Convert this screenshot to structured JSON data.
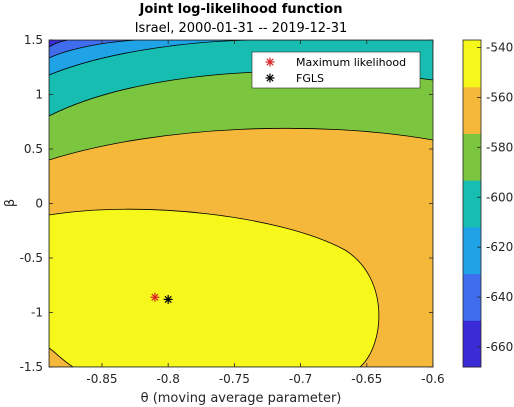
{
  "chart_data": {
    "type": "contour",
    "title": "Joint log-likelihood function",
    "subtitle": "Israel, 2000-01-31 -- 2019-12-31",
    "xlabel": "θ (moving average parameter)",
    "ylabel": "β",
    "xlim": [
      -0.89,
      -0.6
    ],
    "ylim": [
      -1.5,
      1.5
    ],
    "xticks": [
      -0.85,
      -0.8,
      -0.75,
      -0.7,
      -0.65,
      -0.6
    ],
    "xtick_labels": [
      "-0.85",
      "-0.8",
      "-0.75",
      "-0.7",
      "-0.65",
      "-0.6"
    ],
    "yticks": [
      -1.5,
      -1,
      -0.5,
      0,
      0.5,
      1,
      1.5
    ],
    "ytick_labels": [
      "-1.5",
      "-1",
      "-0.5",
      "0",
      "0.5",
      "1",
      "1.5"
    ],
    "colorbar": {
      "range": [
        -668,
        -537
      ],
      "ticks": [
        -540,
        -560,
        -580,
        -600,
        -620,
        -640,
        -660
      ],
      "tick_labels": [
        "-540",
        "-560",
        "-580",
        "-600",
        "-620",
        "-640",
        "-660"
      ],
      "colors": [
        "#3b2bd6",
        "#3f6dee",
        "#1fa2e6",
        "#16bdb0",
        "#7cc63f",
        "#f6b83a",
        "#f6f71b"
      ]
    },
    "contour_levels": [
      -660,
      -640,
      -620,
      -600,
      -580,
      -560,
      -540
    ],
    "series": [
      {
        "name": "Maximum likelihood",
        "x": -0.81,
        "y": -0.86,
        "color": "#d62728",
        "marker": "asterisk"
      },
      {
        "name": "FGLS",
        "x": -0.8,
        "y": -0.88,
        "color": "#000000",
        "marker": "asterisk"
      }
    ],
    "legend_position": "top-right"
  }
}
